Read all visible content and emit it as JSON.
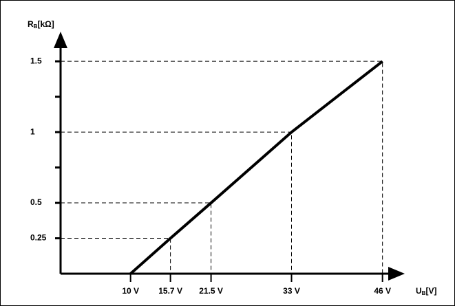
{
  "chart_data": {
    "type": "line",
    "y_label": {
      "symbol": "R",
      "subscript": "B",
      "unit": "[kΩ]"
    },
    "x_label": {
      "symbol": "U",
      "subscript": "B",
      "unit": "[V]"
    },
    "series": [
      {
        "color": "#000000",
        "x": [
          10,
          15.7,
          21.5,
          33,
          46
        ],
        "values": [
          0,
          0.25,
          0.5,
          1,
          1.5
        ]
      }
    ],
    "xlim": [
      0,
      48
    ],
    "ylim": [
      0,
      1.7
    ],
    "xticks": [
      {
        "value": 10,
        "label": "10 V"
      },
      {
        "value": 15.7,
        "label": "15.7 V"
      },
      {
        "value": 21.5,
        "label": "21.5 V"
      },
      {
        "value": 33,
        "label": "33 V"
      },
      {
        "value": 46,
        "label": "46 V"
      }
    ],
    "yticks": [
      0.25,
      0.5,
      1,
      1.5
    ],
    "minor_yticks": [
      0.75,
      1.25
    ]
  }
}
